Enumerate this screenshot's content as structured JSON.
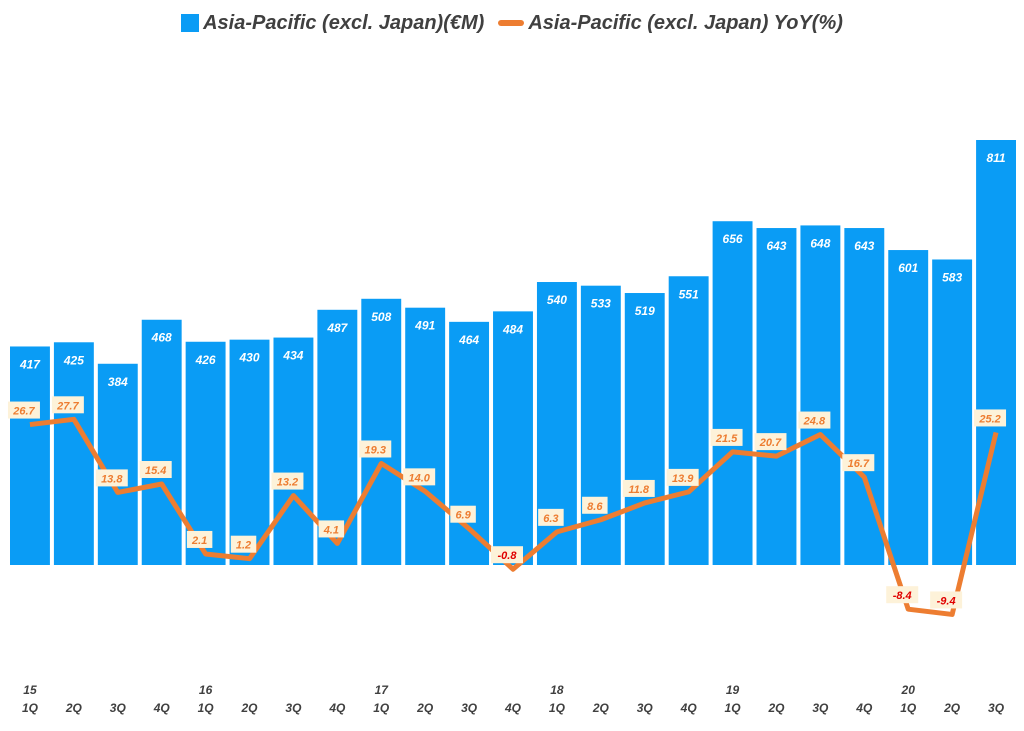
{
  "legend": {
    "bar_label": "Asia-Pacific (excl. Japan)(€M)",
    "line_label": "Asia-Pacific (excl. Japan) YoY(%)"
  },
  "colors": {
    "bar": "#0a9cf5",
    "line": "#ed7d31",
    "pos_label": "#ed7d31",
    "neg_label": "#e00000"
  },
  "chart_data": {
    "type": "bar",
    "title": "",
    "xlabel": "",
    "ylabel": "",
    "grid": false,
    "legend_position": "top",
    "categories": [
      "1Q",
      "2Q",
      "3Q",
      "4Q",
      "1Q",
      "2Q",
      "3Q",
      "4Q",
      "1Q",
      "2Q",
      "3Q",
      "4Q",
      "1Q",
      "2Q",
      "3Q",
      "4Q",
      "1Q",
      "2Q",
      "3Q",
      "4Q",
      "1Q",
      "2Q",
      "3Q"
    ],
    "year_labels": [
      "15",
      "",
      "",
      "",
      "16",
      "",
      "",
      "",
      "17",
      "",
      "",
      "",
      "18",
      "",
      "",
      "",
      "19",
      "",
      "",
      "",
      "20",
      "",
      ""
    ],
    "series": [
      {
        "name": "Asia-Pacific (excl. Japan)(€M)",
        "type": "bar",
        "values": [
          417,
          425,
          384,
          468,
          426,
          430,
          434,
          487,
          508,
          491,
          464,
          484,
          540,
          533,
          519,
          551,
          656,
          643,
          648,
          643,
          601,
          583,
          811
        ],
        "ylim": [
          0,
          1400
        ]
      },
      {
        "name": "Asia-Pacific (excl. Japan) YoY(%)",
        "type": "line",
        "values": [
          26.7,
          27.7,
          13.8,
          15.4,
          2.1,
          1.2,
          13.2,
          4.1,
          19.3,
          14.0,
          6.9,
          -0.8,
          6.3,
          8.6,
          11.8,
          13.9,
          21.5,
          20.7,
          24.8,
          16.7,
          -8.4,
          -9.4,
          25.2
        ],
        "labels": [
          "26.7",
          "27.7",
          "13.8",
          "15.4",
          "2.1",
          "1.2",
          "13.2",
          "4.1",
          "19.3",
          "14.0",
          "6.9",
          "-0.8",
          "6.3",
          "8.6",
          "11.8",
          "13.9",
          "21.5",
          "20.7",
          "24.8",
          "16.7",
          "-8.4",
          "-9.4",
          "25.2"
        ],
        "ylim": [
          -30,
          80
        ]
      }
    ]
  }
}
